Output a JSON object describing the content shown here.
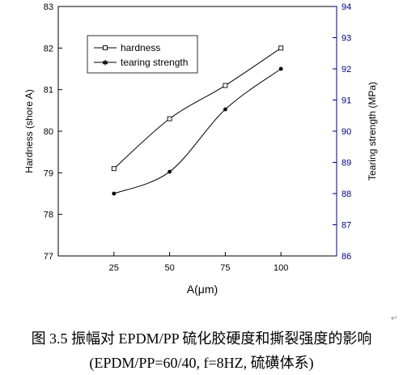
{
  "chart_data": {
    "type": "line",
    "x": [
      25,
      50,
      75,
      100
    ],
    "xlabel": "A(μm)",
    "xlim": [
      0,
      125
    ],
    "x_ticks": [
      "25",
      "50",
      "75",
      "100"
    ],
    "ylabel_left": "Hardness (shore A)",
    "ylim_left": [
      77,
      83
    ],
    "y_ticks_left": [
      "77",
      "78",
      "79",
      "80",
      "81",
      "82",
      "83"
    ],
    "ylabel_right": "Tearing strength (MPa)",
    "ylim_right": [
      86,
      94
    ],
    "y_ticks_right": [
      "86",
      "87",
      "88",
      "89",
      "90",
      "91",
      "92",
      "93",
      "94"
    ],
    "right_axis_color": "#000080",
    "legend_position": "top-left",
    "series": [
      {
        "name": "hardness",
        "axis": "left",
        "marker": "open-square",
        "values": [
          79.1,
          80.3,
          81.1,
          82.0
        ]
      },
      {
        "name": "tearing strength",
        "axis": "right",
        "marker": "filled-star",
        "values": [
          88.0,
          88.7,
          90.7,
          92.0
        ]
      }
    ]
  },
  "caption": {
    "line1": "图 3.5  振幅对 EPDM/PP 硫化胶硬度和撕裂强度的影响",
    "line2": "(EPDM/PP=60/40, f=8HZ,  硫磺体系)"
  },
  "marks": {
    "return_arrow": "↵"
  }
}
